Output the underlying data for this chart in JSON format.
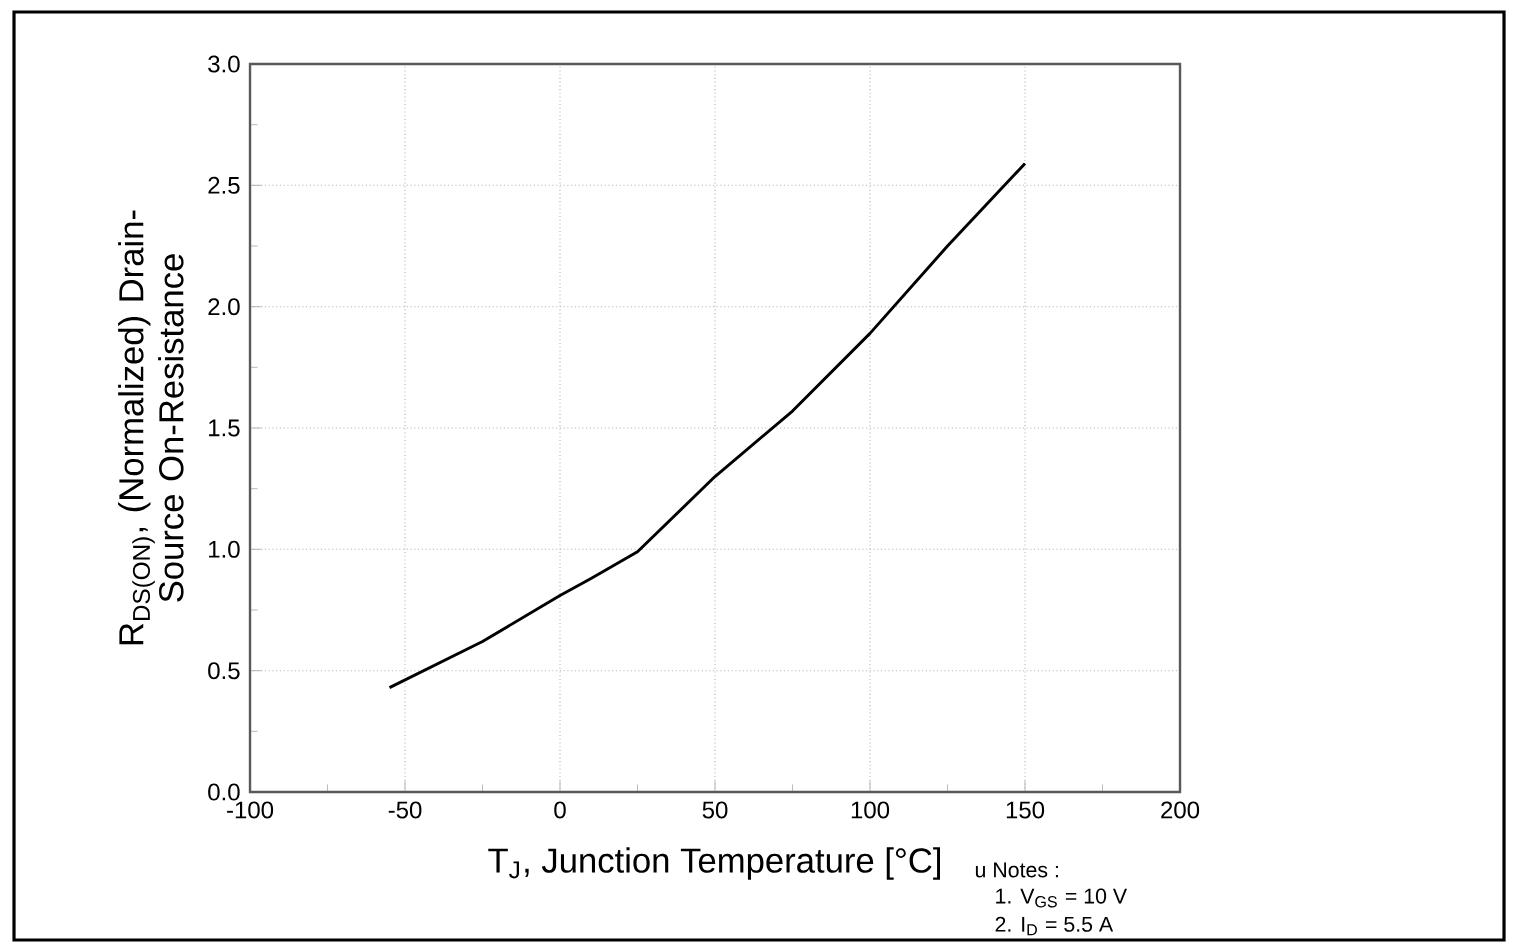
{
  "chart_data": {
    "type": "line",
    "xlabel": "T$_{J}$, Junction Temperature [°C]",
    "ylabel": "R$_{DS(ON)}$, (Normalized) Drain-Source On-Resistance",
    "x": [
      -55,
      -25,
      0,
      10,
      25,
      50,
      75,
      100,
      125,
      150
    ],
    "series": [
      {
        "color": "#000000",
        "values": [
          0.43,
          0.62,
          0.81,
          0.88,
          0.99,
          1.3,
          1.57,
          1.89,
          2.25,
          2.59
        ]
      }
    ],
    "xlim": [
      -100,
      200
    ],
    "xticks": [
      -100,
      -50,
      0,
      50,
      100,
      150,
      200
    ],
    "ylim": [
      0,
      3
    ],
    "yticks": [
      {
        "value": 0,
        "label": "0.0"
      },
      {
        "value": 0.5,
        "label": "0.5"
      },
      {
        "value": 1,
        "label": "1.0"
      },
      {
        "value": 1.5,
        "label": "1.5"
      },
      {
        "value": 2,
        "label": "2.0"
      },
      {
        "value": 2.5,
        "label": "2.5"
      },
      {
        "value": 3,
        "label": "3.0"
      }
    ],
    "grid": true,
    "marker": "none",
    "line_style": "solid",
    "annotations": [
      "u Notes :",
      "1. V$_{GS}$ = 10 V",
      "2. I$_{D}$ = 5.5 A"
    ]
  }
}
